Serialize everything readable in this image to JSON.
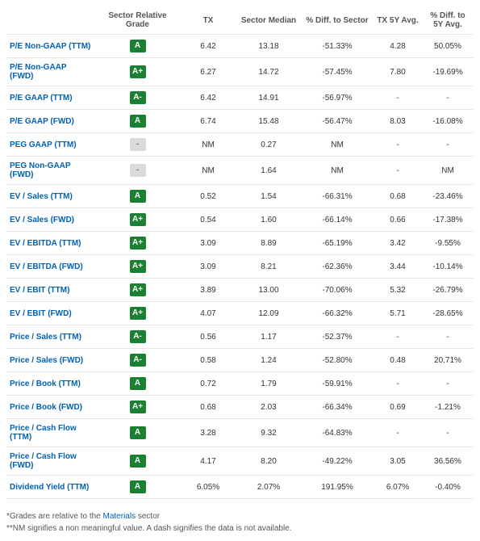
{
  "columns": [
    "",
    "Sector Relative Grade",
    "TX",
    "Sector Median",
    "% Diff. to Sector",
    "TX 5Y Avg.",
    "% Diff. to 5Y Avg."
  ],
  "grade_color_map": {
    "A": "grade-green",
    "A+": "grade-green",
    "A-": "grade-green",
    "-": "grade-gray"
  },
  "rows": [
    {
      "metric": "P/E Non-GAAP (TTM)",
      "grade": "A",
      "tx": "6.42",
      "median": "13.18",
      "diff_sector": "-51.33%",
      "tx5y": "4.28",
      "diff_5y": "50.05%"
    },
    {
      "metric": "P/E Non-GAAP (FWD)",
      "grade": "A+",
      "tx": "6.27",
      "median": "14.72",
      "diff_sector": "-57.45%",
      "tx5y": "7.80",
      "diff_5y": "-19.69%"
    },
    {
      "metric": "P/E GAAP (TTM)",
      "grade": "A-",
      "tx": "6.42",
      "median": "14.91",
      "diff_sector": "-56.97%",
      "tx5y": "-",
      "diff_5y": "-"
    },
    {
      "metric": "P/E GAAP (FWD)",
      "grade": "A",
      "tx": "6.74",
      "median": "15.48",
      "diff_sector": "-56.47%",
      "tx5y": "8.03",
      "diff_5y": "-16.08%"
    },
    {
      "metric": "PEG GAAP (TTM)",
      "grade": "-",
      "tx": "NM",
      "median": "0.27",
      "diff_sector": "NM",
      "tx5y": "-",
      "diff_5y": "-"
    },
    {
      "metric": "PEG Non-GAAP (FWD)",
      "grade": "-",
      "tx": "NM",
      "median": "1.64",
      "diff_sector": "NM",
      "tx5y": "-",
      "diff_5y": "NM"
    },
    {
      "metric": "EV / Sales (TTM)",
      "grade": "A",
      "tx": "0.52",
      "median": "1.54",
      "diff_sector": "-66.31%",
      "tx5y": "0.68",
      "diff_5y": "-23.46%"
    },
    {
      "metric": "EV / Sales (FWD)",
      "grade": "A+",
      "tx": "0.54",
      "median": "1.60",
      "diff_sector": "-66.14%",
      "tx5y": "0.66",
      "diff_5y": "-17.38%"
    },
    {
      "metric": "EV / EBITDA (TTM)",
      "grade": "A+",
      "tx": "3.09",
      "median": "8.89",
      "diff_sector": "-65.19%",
      "tx5y": "3.42",
      "diff_5y": "-9.55%"
    },
    {
      "metric": "EV / EBITDA (FWD)",
      "grade": "A+",
      "tx": "3.09",
      "median": "8.21",
      "diff_sector": "-62.36%",
      "tx5y": "3.44",
      "diff_5y": "-10.14%"
    },
    {
      "metric": "EV / EBIT (TTM)",
      "grade": "A+",
      "tx": "3.89",
      "median": "13.00",
      "diff_sector": "-70.06%",
      "tx5y": "5.32",
      "diff_5y": "-26.79%"
    },
    {
      "metric": "EV / EBIT (FWD)",
      "grade": "A+",
      "tx": "4.07",
      "median": "12.09",
      "diff_sector": "-66.32%",
      "tx5y": "5.71",
      "diff_5y": "-28.65%"
    },
    {
      "metric": "Price / Sales (TTM)",
      "grade": "A-",
      "tx": "0.56",
      "median": "1.17",
      "diff_sector": "-52.37%",
      "tx5y": "-",
      "diff_5y": "-"
    },
    {
      "metric": "Price / Sales (FWD)",
      "grade": "A-",
      "tx": "0.58",
      "median": "1.24",
      "diff_sector": "-52.80%",
      "tx5y": "0.48",
      "diff_5y": "20.71%"
    },
    {
      "metric": "Price / Book (TTM)",
      "grade": "A",
      "tx": "0.72",
      "median": "1.79",
      "diff_sector": "-59.91%",
      "tx5y": "-",
      "diff_5y": "-"
    },
    {
      "metric": "Price / Book (FWD)",
      "grade": "A+",
      "tx": "0.68",
      "median": "2.03",
      "diff_sector": "-66.34%",
      "tx5y": "0.69",
      "diff_5y": "-1.21%"
    },
    {
      "metric": "Price / Cash Flow (TTM)",
      "grade": "A",
      "tx": "3.28",
      "median": "9.32",
      "diff_sector": "-64.83%",
      "tx5y": "-",
      "diff_5y": "-"
    },
    {
      "metric": "Price / Cash Flow (FWD)",
      "grade": "A",
      "tx": "4.17",
      "median": "8.20",
      "diff_sector": "-49.22%",
      "tx5y": "3.05",
      "diff_5y": "36.56%"
    },
    {
      "metric": "Dividend Yield (TTM)",
      "grade": "A",
      "tx": "6.05%",
      "median": "2.07%",
      "diff_sector": "191.95%",
      "tx5y": "6.07%",
      "diff_5y": "-0.40%"
    }
  ],
  "footnotes": {
    "line1_prefix": "*Grades are relative to the ",
    "line1_link": "Materials",
    "line1_suffix": " sector",
    "line2": "**NM signifies a non meaningful value. A dash signifies the data is not available."
  }
}
